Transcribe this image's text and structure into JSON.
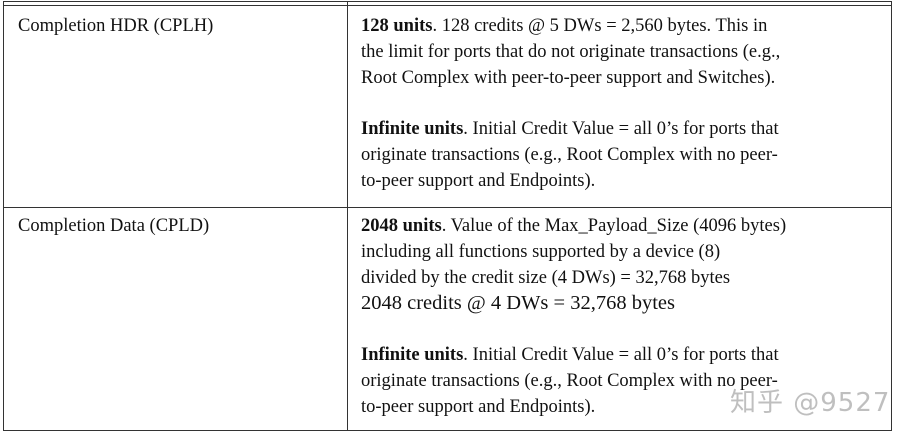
{
  "rows": [
    {
      "name": "Completion HDR (CPLH)",
      "p1": {
        "bold": "128 units",
        "lines": [
          ". 128 credits @ 5 DWs = 2,560 bytes. This in",
          "the limit for ports that do not originate transactions (e.g.,",
          "Root Complex with peer-to-peer support and Switches)."
        ]
      },
      "p2": {
        "bold": "Infinite units",
        "lines": [
          ". Initial Credit Value = all 0’s for ports that",
          "originate transactions (e.g., Root Complex with no peer-",
          "to-peer support and Endpoints)."
        ]
      }
    },
    {
      "name": "Completion Data (CPLD)",
      "p1": {
        "bold": "2048 units",
        "lines": [
          ". Value of the Max_Payload_Size (4096 bytes)",
          "including all functions supported by a device (8)",
          "divided by the credit size (4 DWs) = 32,768 bytes",
          "2048 credits @ 4 DWs = 32,768 bytes"
        ]
      },
      "p2": {
        "bold": "Infinite units",
        "lines": [
          ". Initial Credit Value = all 0’s for ports that",
          "originate transactions (e.g., Root Complex with no peer-",
          "to-peer support and Endpoints)."
        ]
      }
    }
  ],
  "watermark": "知乎 @9527"
}
